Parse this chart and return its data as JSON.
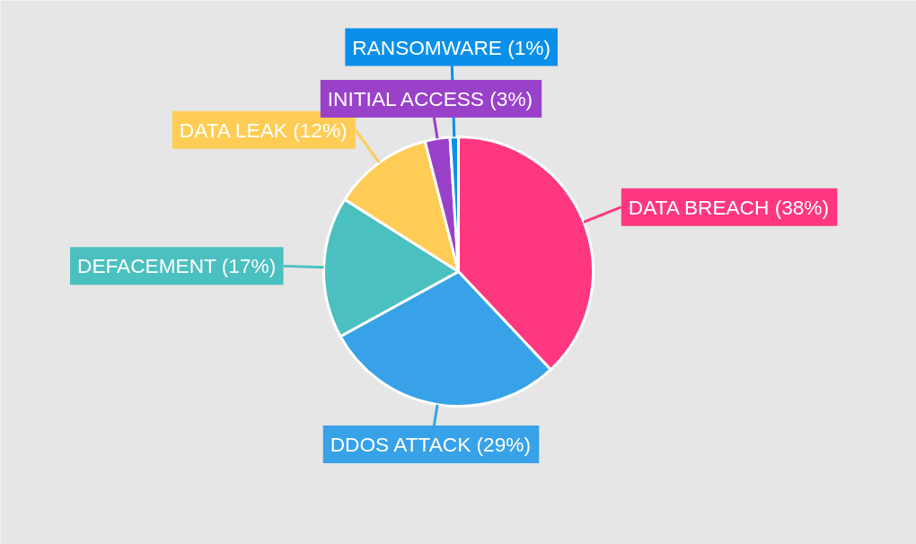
{
  "chart_data": {
    "type": "pie",
    "categories": [
      "DATA BREACH",
      "DDOS ATTACK",
      "DEFACEMENT",
      "DATA LEAK",
      "INITIAL ACCESS",
      "RANSOMWARE"
    ],
    "values": [
      38,
      29,
      17,
      12,
      3,
      1
    ],
    "value_labels": [
      "(38%)",
      "(29%)",
      "(17%)",
      "(12%)",
      "(3%)",
      "(1%)"
    ],
    "colors": [
      "#fe3780",
      "#37a2e8",
      "#4bc0c0",
      "#ffcd56",
      "#9a41c9",
      "#0a90ea"
    ]
  }
}
